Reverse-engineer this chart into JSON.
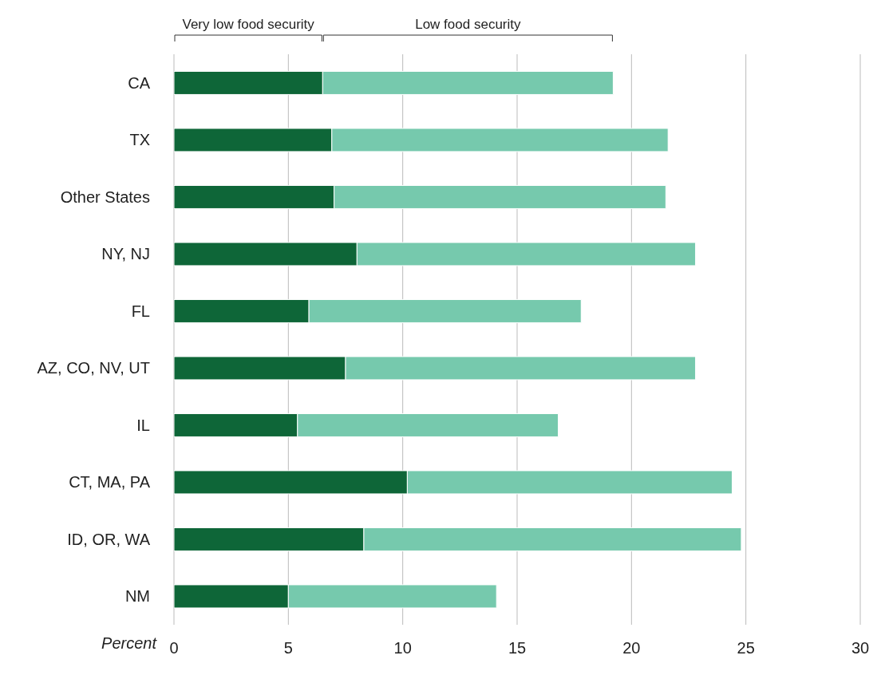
{
  "chart_data": {
    "type": "bar",
    "orientation": "horizontal",
    "stacked": true,
    "legend": "top",
    "grid": "x",
    "xlabel": "Percent",
    "categories": [
      "CA",
      "TX",
      "Other States",
      "NY, NJ",
      "FL",
      "AZ, CO, NV, UT",
      "IL",
      "CT, MA, PA",
      "ID, OR, WA",
      "NM"
    ],
    "series": [
      {
        "name": "Very low food security",
        "color": "#0e6638",
        "values": [
          6.5,
          6.9,
          7.0,
          8.0,
          5.9,
          7.5,
          5.4,
          10.2,
          8.3,
          5.0
        ]
      },
      {
        "name": "Low food security",
        "color": "#76c9ad",
        "values": [
          12.7,
          14.7,
          14.5,
          14.8,
          11.9,
          15.3,
          11.4,
          14.2,
          16.5,
          9.1
        ]
      }
    ],
    "xlim": [
      0,
      30
    ],
    "xticks": [
      0,
      5,
      10,
      15,
      20,
      25,
      30
    ]
  }
}
